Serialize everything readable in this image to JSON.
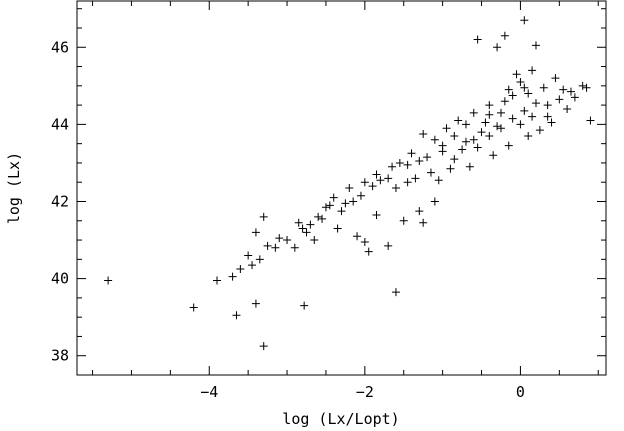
{
  "chart_data": {
    "type": "scatter",
    "title": "",
    "xlabel": "log (Lx/Lopt)",
    "ylabel": "log (Lx)",
    "xlim": [
      -5.7,
      1.1
    ],
    "ylim": [
      37.5,
      47.2
    ],
    "x_ticks": [
      -4,
      -2,
      0
    ],
    "y_ticks": [
      38,
      40,
      42,
      44,
      46
    ],
    "x_tick_labels": [
      "−4",
      "−2",
      "0"
    ],
    "y_tick_labels": [
      "38",
      "40",
      "42",
      "44",
      "46"
    ],
    "grid": false,
    "legend": "none",
    "marker": "plus",
    "marker_color": "#000000",
    "series": [
      {
        "points": [
          [
            -5.3,
            39.95
          ],
          [
            -4.2,
            39.25
          ],
          [
            -3.65,
            39.05
          ],
          [
            -3.4,
            39.35
          ],
          [
            -3.3,
            38.25
          ],
          [
            -2.78,
            39.3
          ],
          [
            -1.6,
            39.65
          ],
          [
            -3.9,
            39.95
          ],
          [
            -3.7,
            40.05
          ],
          [
            -3.6,
            40.25
          ],
          [
            -3.45,
            40.35
          ],
          [
            -3.35,
            40.5
          ],
          [
            -3.25,
            40.85
          ],
          [
            -3.1,
            41.05
          ],
          [
            -3.3,
            41.6
          ],
          [
            -3.4,
            41.2
          ],
          [
            -2.9,
            40.8
          ],
          [
            -2.85,
            41.45
          ],
          [
            -2.75,
            41.2
          ],
          [
            -2.6,
            41.6
          ],
          [
            -2.5,
            41.85
          ],
          [
            -2.7,
            41.4
          ],
          [
            -2.35,
            41.3
          ],
          [
            -2.25,
            41.95
          ],
          [
            -2.1,
            41.1
          ],
          [
            -1.95,
            40.7
          ],
          [
            -1.7,
            40.85
          ],
          [
            -1.5,
            41.5
          ],
          [
            -1.25,
            41.45
          ],
          [
            -1.1,
            42.0
          ],
          [
            -2.4,
            42.1
          ],
          [
            -2.2,
            42.35
          ],
          [
            -2.0,
            42.5
          ],
          [
            -1.85,
            42.7
          ],
          [
            -1.65,
            42.9
          ],
          [
            -1.45,
            42.5
          ],
          [
            -1.3,
            43.05
          ],
          [
            -1.15,
            42.75
          ],
          [
            -1.0,
            43.3
          ],
          [
            -0.85,
            43.1
          ],
          [
            -0.7,
            43.55
          ],
          [
            -0.55,
            43.4
          ],
          [
            -0.4,
            43.7
          ],
          [
            -0.25,
            43.9
          ],
          [
            -0.1,
            44.15
          ],
          [
            0.05,
            44.35
          ],
          [
            0.2,
            44.55
          ],
          [
            0.35,
            44.2
          ],
          [
            0.5,
            44.65
          ],
          [
            0.65,
            44.85
          ],
          [
            0.8,
            45.0
          ],
          [
            0.9,
            44.1
          ],
          [
            -0.55,
            46.2
          ],
          [
            -0.3,
            46.0
          ],
          [
            -0.2,
            46.3
          ],
          [
            0.05,
            46.7
          ],
          [
            0.2,
            46.05
          ],
          [
            -0.4,
            44.5
          ],
          [
            -0.15,
            44.9
          ],
          [
            0.0,
            45.1
          ],
          [
            0.1,
            44.8
          ],
          [
            -0.05,
            45.3
          ],
          [
            0.15,
            45.4
          ],
          [
            0.3,
            44.95
          ],
          [
            0.45,
            45.2
          ],
          [
            -0.8,
            44.1
          ],
          [
            -0.6,
            44.3
          ],
          [
            -0.95,
            43.9
          ],
          [
            -1.1,
            43.6
          ],
          [
            -1.25,
            43.75
          ],
          [
            -1.4,
            43.25
          ],
          [
            -1.55,
            43.0
          ],
          [
            -1.7,
            42.6
          ],
          [
            -1.9,
            42.4
          ],
          [
            -2.05,
            42.15
          ],
          [
            -2.3,
            41.75
          ],
          [
            -2.55,
            41.55
          ],
          [
            -2.8,
            41.3
          ],
          [
            -3.0,
            41.0
          ],
          [
            -3.15,
            40.8
          ],
          [
            -0.35,
            43.2
          ],
          [
            -0.15,
            43.45
          ],
          [
            0.1,
            43.7
          ],
          [
            0.25,
            43.85
          ],
          [
            0.4,
            44.05
          ],
          [
            -0.65,
            42.9
          ],
          [
            -0.9,
            42.85
          ],
          [
            -1.05,
            42.55
          ],
          [
            -1.35,
            42.6
          ],
          [
            -1.6,
            42.35
          ],
          [
            -0.45,
            44.05
          ],
          [
            -0.7,
            44.0
          ],
          [
            -0.85,
            43.7
          ],
          [
            -0.2,
            44.6
          ],
          [
            0.0,
            44.0
          ],
          [
            0.15,
            44.2
          ],
          [
            -0.3,
            43.95
          ],
          [
            -0.5,
            43.8
          ],
          [
            -0.75,
            43.35
          ],
          [
            -1.0,
            43.45
          ],
          [
            -1.2,
            43.15
          ],
          [
            -1.45,
            42.95
          ],
          [
            -1.8,
            42.55
          ],
          [
            -2.15,
            42.0
          ],
          [
            -2.45,
            41.9
          ],
          [
            -0.1,
            44.75
          ],
          [
            0.05,
            44.95
          ],
          [
            -0.25,
            44.3
          ],
          [
            -0.4,
            44.25
          ],
          [
            -0.6,
            43.6
          ],
          [
            0.55,
            44.9
          ],
          [
            0.7,
            44.7
          ],
          [
            0.85,
            44.95
          ],
          [
            0.6,
            44.4
          ],
          [
            0.35,
            44.5
          ],
          [
            -1.3,
            41.75
          ],
          [
            -1.85,
            41.65
          ],
          [
            -2.65,
            41.0
          ],
          [
            -2.0,
            40.95
          ],
          [
            -3.5,
            40.6
          ]
        ]
      }
    ]
  }
}
